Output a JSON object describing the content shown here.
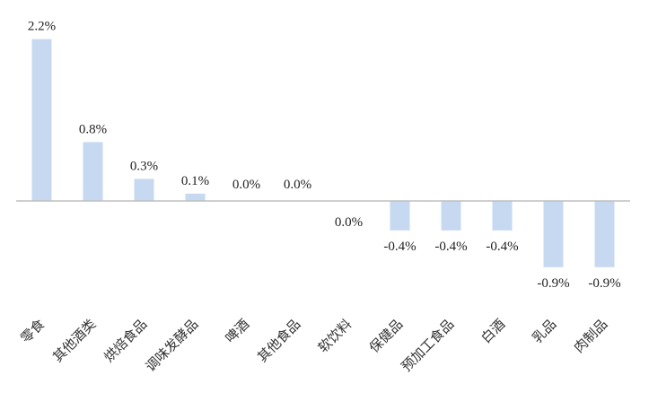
{
  "chart_data": {
    "type": "bar",
    "categories": [
      "零食",
      "其他酒类",
      "烘焙食品",
      "调味发酵品",
      "啤酒",
      "其他食品",
      "软饮料",
      "保健品",
      "预加工食品",
      "白酒",
      "乳品",
      "肉制品"
    ],
    "values": [
      2.2,
      0.8,
      0.3,
      0.1,
      0.0,
      0.0,
      0.0,
      -0.4,
      -0.4,
      -0.4,
      -0.9,
      -0.9
    ],
    "value_labels": [
      "2.2%",
      "0.8%",
      "0.3%",
      "0.1%",
      "0.0%",
      "0.0%",
      "0.0%",
      "-0.4%",
      "-0.4%",
      "-0.4%",
      "-0.9%",
      "-0.9%"
    ],
    "title": "",
    "xlabel": "",
    "ylabel": "",
    "ylim": [
      -0.9,
      2.2
    ],
    "grid": false,
    "legend": "none",
    "bar_color": "#c6d9f1",
    "axis_color": "#bfbfbf"
  }
}
